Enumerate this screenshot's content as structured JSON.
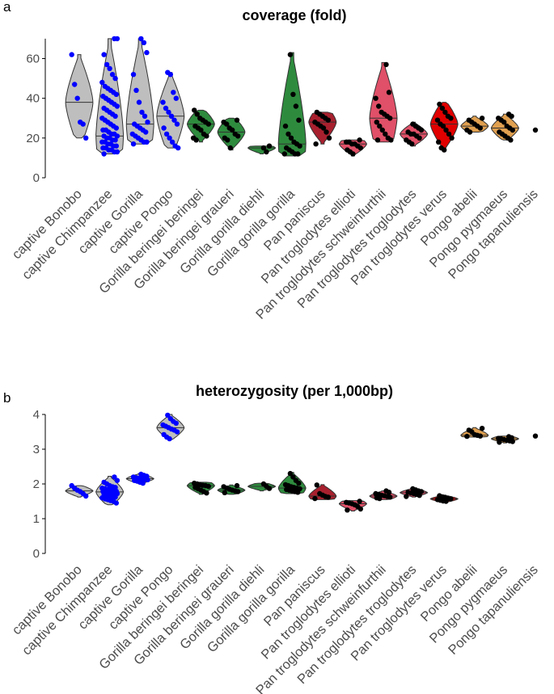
{
  "panels": [
    {
      "letter": "a"
    },
    {
      "letter": "b"
    }
  ],
  "chart_data": [
    {
      "type": "violin",
      "title": "coverage (fold)",
      "xlabel": "",
      "ylabel": "",
      "ylim": [
        0,
        70
      ],
      "yticks": [
        0,
        20,
        40,
        60
      ],
      "grid": false,
      "categories": [
        "captive Bonobo",
        "captive Chimpanzee",
        "captive Gorilla",
        "captive Pongo",
        "Gorilla beringei beringei",
        "Gorilla beringei graueri",
        "Gorilla gorilla diehli",
        "Gorilla gorilla gorilla",
        "Pan paniscus",
        "Pan troglodytes ellioti",
        "Pan troglodytes schweinfurthii",
        "Pan troglodytes troglodytes",
        "Pan troglodytes verus",
        "Pongo abelii",
        "Pongo pygmaeus",
        "Pongo tapanuliensis"
      ],
      "fill_colors": [
        "#bebebe",
        "#bebebe",
        "#bebebe",
        "#bebebe",
        "#2e8b3e",
        "#2e8b3e",
        "#2e8b3e",
        "#2e8b3e",
        "#a8202e",
        "#e05068",
        "#e05068",
        "#e05068",
        "#e00000",
        "#e0a050",
        "#e0a050",
        "#e0a050"
      ],
      "point_colors": [
        "#0000ff",
        "#0000ff",
        "#0000ff",
        "#0000ff",
        "#000000",
        "#000000",
        "#000000",
        "#000000",
        "#000000",
        "#000000",
        "#000000",
        "#000000",
        "#000000",
        "#000000",
        "#000000",
        "#000000"
      ],
      "series": [
        {
          "min": 20,
          "max": 62,
          "median": 38,
          "points": [
            62,
            47,
            40,
            28,
            27,
            20
          ]
        },
        {
          "min": 12,
          "max": 70,
          "median": 21,
          "points": [
            70,
            70,
            62,
            57,
            55,
            52,
            50,
            48,
            46,
            45,
            44,
            43,
            42,
            41,
            40,
            39,
            38,
            37,
            36,
            35,
            34,
            33,
            32,
            31,
            30,
            29,
            28,
            27,
            26,
            25,
            24,
            24,
            23,
            22,
            22,
            21,
            21,
            20,
            20,
            19,
            19,
            18,
            18,
            17,
            17,
            16,
            16,
            15,
            15,
            14,
            14,
            13,
            13,
            12
          ]
        },
        {
          "min": 17,
          "max": 70,
          "median": 27,
          "points": [
            70,
            68,
            63,
            52,
            44,
            38,
            33,
            31,
            28,
            27,
            26,
            25,
            24,
            23,
            22,
            21,
            20,
            19,
            18,
            18,
            17
          ]
        },
        {
          "min": 15,
          "max": 53,
          "median": 31,
          "points": [
            53,
            52,
            43,
            40,
            38,
            35,
            33,
            31,
            29,
            27,
            25,
            22,
            20,
            18,
            16,
            15
          ]
        },
        {
          "min": 18,
          "max": 34,
          "median": 27,
          "points": [
            34,
            32,
            30,
            29,
            28,
            27,
            26,
            25,
            24,
            22,
            21,
            20,
            19
          ]
        },
        {
          "min": 14,
          "max": 30,
          "median": 23,
          "points": [
            29,
            28,
            27,
            25,
            24,
            22,
            21,
            20,
            19,
            15
          ]
        },
        {
          "min": 12,
          "max": 16,
          "median": 15,
          "points": [
            15,
            13,
            16
          ]
        },
        {
          "min": 11,
          "max": 63,
          "median": 17,
          "points": [
            62,
            42,
            36,
            29,
            26,
            22,
            20,
            18,
            17,
            16,
            15,
            14,
            13,
            12,
            12,
            12
          ]
        },
        {
          "min": 17,
          "max": 33,
          "median": 28,
          "points": [
            33,
            32,
            31,
            30,
            29,
            28,
            27,
            26,
            25,
            23,
            20,
            17
          ]
        },
        {
          "min": 11,
          "max": 19,
          "median": 17,
          "points": [
            19,
            18,
            18,
            17,
            17,
            16,
            15,
            14,
            13,
            12
          ]
        },
        {
          "min": 18,
          "max": 58,
          "median": 30,
          "points": [
            57,
            43,
            40,
            36,
            33,
            32,
            31,
            30,
            28,
            26,
            24,
            22,
            20,
            19,
            19
          ]
        },
        {
          "min": 16,
          "max": 28,
          "median": 22,
          "points": [
            27,
            26,
            25,
            24,
            23,
            22,
            22,
            21,
            20,
            19,
            18,
            17
          ]
        },
        {
          "min": 14,
          "max": 38,
          "median": 27,
          "points": [
            37,
            35,
            33,
            31,
            30,
            29,
            27,
            26,
            24,
            22,
            20,
            18,
            15,
            14
          ]
        },
        {
          "min": 23,
          "max": 31,
          "median": 26,
          "points": [
            30,
            29,
            28,
            27,
            26,
            25,
            24,
            23
          ]
        },
        {
          "min": 19,
          "max": 32,
          "median": 25,
          "points": [
            32,
            31,
            30,
            29,
            28,
            26,
            25,
            24,
            23,
            22,
            21,
            20,
            19
          ]
        },
        {
          "min": 24,
          "max": 24,
          "median": 24,
          "points": [
            24
          ]
        }
      ]
    },
    {
      "type": "violin",
      "title": "heterozygosity (per 1,000bp)",
      "xlabel": "",
      "ylabel": "",
      "ylim": [
        0,
        4
      ],
      "yticks": [
        0,
        1,
        2,
        3,
        4
      ],
      "grid": false,
      "categories": [
        "captive Bonobo",
        "captive Chimpanzee",
        "captive Gorilla",
        "captive Pongo",
        "Gorilla beringei beringei",
        "Gorilla beringei graueri",
        "Gorilla gorilla diehli",
        "Gorilla gorilla gorilla",
        "Pan paniscus",
        "Pan troglodytes ellioti",
        "Pan troglodytes schweinfurthii",
        "Pan troglodytes troglodytes",
        "Pan troglodytes verus",
        "Pongo abelii",
        "Pongo pygmaeus",
        "Pongo tapanuliensis"
      ],
      "fill_colors": [
        "#bebebe",
        "#bebebe",
        "#bebebe",
        "#bebebe",
        "#2e8b3e",
        "#2e8b3e",
        "#2e8b3e",
        "#2e8b3e",
        "#a8202e",
        "#e05068",
        "#e05068",
        "#e05068",
        "#e00000",
        "#e0a050",
        "#e0a050",
        "#e0a050"
      ],
      "point_colors": [
        "#0000ff",
        "#0000ff",
        "#0000ff",
        "#0000ff",
        "#000000",
        "#000000",
        "#000000",
        "#000000",
        "#000000",
        "#000000",
        "#000000",
        "#000000",
        "#000000",
        "#000000",
        "#000000",
        "#000000"
      ],
      "series": [
        {
          "min": 1.62,
          "max": 1.95,
          "median": 1.8,
          "points": [
            1.95,
            1.88,
            1.82,
            1.78,
            1.72,
            1.65
          ]
        },
        {
          "min": 1.4,
          "max": 2.22,
          "median": 1.77,
          "points": [
            2.2,
            2.1,
            2.05,
            2.0,
            1.95,
            1.92,
            1.9,
            1.88,
            1.86,
            1.84,
            1.82,
            1.8,
            1.79,
            1.78,
            1.77,
            1.76,
            1.75,
            1.74,
            1.72,
            1.7,
            1.68,
            1.66,
            1.64,
            1.62,
            1.6,
            1.57,
            1.55,
            1.52,
            1.5,
            1.45
          ]
        },
        {
          "min": 2.0,
          "max": 2.3,
          "median": 2.15,
          "points": [
            2.28,
            2.25,
            2.22,
            2.2,
            2.18,
            2.16,
            2.15,
            2.13,
            2.12,
            2.1,
            2.08,
            2.05,
            2.02
          ]
        },
        {
          "min": 3.28,
          "max": 4.0,
          "median": 3.62,
          "points": [
            3.98,
            3.88,
            3.8,
            3.75,
            3.7,
            3.66,
            3.62,
            3.58,
            3.55,
            3.5,
            3.42,
            3.35,
            3.3
          ]
        },
        {
          "min": 1.7,
          "max": 2.05,
          "median": 1.95,
          "points": [
            2.02,
            2.0,
            1.98,
            1.96,
            1.95,
            1.93,
            1.9,
            1.86,
            1.82,
            1.78,
            1.74
          ]
        },
        {
          "min": 1.7,
          "max": 1.97,
          "median": 1.82,
          "points": [
            1.95,
            1.92,
            1.88,
            1.85,
            1.82,
            1.8,
            1.78,
            1.75
          ]
        },
        {
          "min": 1.8,
          "max": 2.02,
          "median": 1.93,
          "points": [
            2.0,
            1.93,
            1.87
          ]
        },
        {
          "min": 1.72,
          "max": 2.33,
          "median": 1.88,
          "points": [
            2.3,
            2.2,
            2.1,
            2.02,
            1.98,
            1.95,
            1.92,
            1.9,
            1.88,
            1.86,
            1.84,
            1.82,
            1.8,
            1.78,
            1.76
          ]
        },
        {
          "min": 1.55,
          "max": 1.98,
          "median": 1.65,
          "points": [
            1.97,
            1.72,
            1.68,
            1.64,
            1.62,
            1.58
          ]
        },
        {
          "min": 1.22,
          "max": 1.52,
          "median": 1.43,
          "points": [
            1.5,
            1.47,
            1.45,
            1.43,
            1.4,
            1.35,
            1.28,
            1.25
          ]
        },
        {
          "min": 1.55,
          "max": 1.8,
          "median": 1.65,
          "points": [
            1.8,
            1.76,
            1.72,
            1.7,
            1.68,
            1.66,
            1.64,
            1.62,
            1.6,
            1.58
          ]
        },
        {
          "min": 1.62,
          "max": 1.88,
          "median": 1.75,
          "points": [
            1.86,
            1.83,
            1.8,
            1.78,
            1.76,
            1.74,
            1.72,
            1.7,
            1.67,
            1.64
          ]
        },
        {
          "min": 1.48,
          "max": 1.68,
          "median": 1.57,
          "points": [
            1.66,
            1.63,
            1.6,
            1.58,
            1.57,
            1.55,
            1.53,
            1.51,
            1.5
          ]
        },
        {
          "min": 3.35,
          "max": 3.62,
          "median": 3.4,
          "points": [
            3.6,
            3.55,
            3.5,
            3.42,
            3.4,
            3.38,
            3.37
          ]
        },
        {
          "min": 3.18,
          "max": 3.38,
          "median": 3.3,
          "points": [
            3.36,
            3.33,
            3.31,
            3.3,
            3.28,
            3.26,
            3.24,
            3.22,
            3.2
          ]
        },
        {
          "min": 3.38,
          "max": 3.38,
          "median": 3.38,
          "points": [
            3.38
          ]
        }
      ]
    }
  ]
}
